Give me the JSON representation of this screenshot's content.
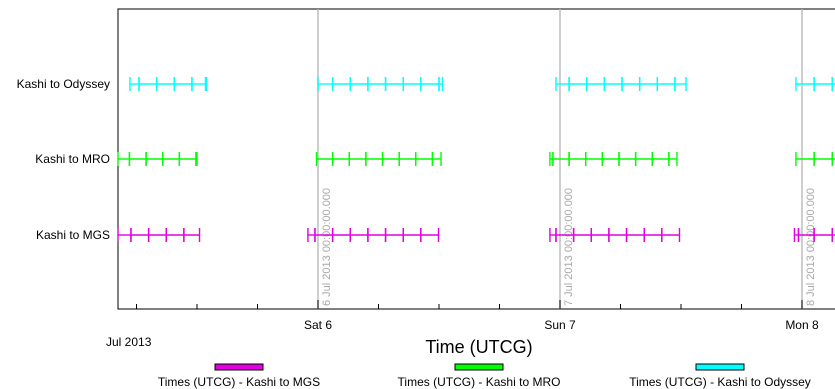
{
  "chart_data": {
    "type": "timeline",
    "title": "",
    "xlabel": "Time (UTCG)",
    "ylabel": "",
    "x_start_label": "Jul 2013",
    "x_ticks": [
      {
        "label": "Sat 6",
        "hour": 24
      },
      {
        "label": "Sun 7",
        "hour": 48
      },
      {
        "label": "Mon 8",
        "hour": 72
      }
    ],
    "vline_labels": [
      {
        "hour": 24,
        "text": "6 Jul 2013 00:00:00.000"
      },
      {
        "hour": 48,
        "text": "7 Jul 2013 00:00:00.000"
      },
      {
        "hour": 72,
        "text": "8 Jul 2013 00:00:00.000"
      }
    ],
    "xlim_hours": [
      4.1,
      75.8
    ],
    "series": [
      {
        "name": "Times (UTCG) - Kashi to Odyssey",
        "row_label": "Kashi to Odyssey",
        "color": "#00ffff",
        "intervals": [
          [
            5.35,
            6.25
          ],
          [
            6.25,
            8.0
          ],
          [
            8.0,
            9.75
          ],
          [
            9.75,
            11.5
          ],
          [
            11.5,
            12.85
          ],
          [
            12.85,
            12.95
          ],
          [
            24.0,
            25.45
          ],
          [
            25.45,
            27.2
          ],
          [
            27.2,
            28.95
          ],
          [
            28.95,
            30.7
          ],
          [
            30.7,
            32.45
          ],
          [
            32.45,
            34.2
          ],
          [
            34.2,
            36.0
          ],
          [
            36.0,
            36.35
          ],
          [
            47.6,
            48.9
          ],
          [
            48.9,
            50.65
          ],
          [
            50.65,
            52.4
          ],
          [
            52.4,
            54.15
          ],
          [
            54.15,
            55.9
          ],
          [
            55.9,
            57.65
          ],
          [
            57.65,
            59.4
          ],
          [
            59.4,
            60.5
          ],
          [
            71.4,
            73.2
          ],
          [
            73.2,
            75.0
          ],
          [
            75.0,
            75.8
          ]
        ]
      },
      {
        "name": "Times (UTCG) - Kashi to MRO",
        "row_label": "Kashi to MRO",
        "color": "#00ff00",
        "intervals": [
          [
            4.1,
            5.3
          ],
          [
            5.3,
            6.95
          ],
          [
            6.95,
            8.6
          ],
          [
            8.6,
            10.25
          ],
          [
            10.25,
            11.9
          ],
          [
            11.9,
            12.0
          ],
          [
            23.85,
            25.45
          ],
          [
            25.45,
            27.1
          ],
          [
            27.1,
            28.75
          ],
          [
            28.75,
            30.4
          ],
          [
            30.4,
            32.05
          ],
          [
            32.05,
            33.7
          ],
          [
            33.7,
            35.35
          ],
          [
            35.35,
            36.2
          ],
          [
            47.0,
            47.3
          ],
          [
            47.3,
            48.9
          ],
          [
            48.9,
            50.55
          ],
          [
            50.55,
            52.2
          ],
          [
            52.2,
            53.85
          ],
          [
            53.85,
            55.5
          ],
          [
            55.5,
            57.15
          ],
          [
            57.15,
            58.8
          ],
          [
            58.8,
            59.6
          ],
          [
            71.4,
            73.2
          ],
          [
            73.2,
            75.0
          ],
          [
            75.0,
            75.8
          ]
        ]
      },
      {
        "name": "Times (UTCG) - Kashi to MGS",
        "row_label": "Kashi to MGS",
        "color": "#e000e0",
        "intervals": [
          [
            4.1,
            5.45
          ],
          [
            5.45,
            7.2
          ],
          [
            7.2,
            8.95
          ],
          [
            8.95,
            10.7
          ],
          [
            10.7,
            12.25
          ],
          [
            23.0,
            23.7
          ],
          [
            23.7,
            25.45
          ],
          [
            25.45,
            27.2
          ],
          [
            27.2,
            28.95
          ],
          [
            28.95,
            30.7
          ],
          [
            30.7,
            32.45
          ],
          [
            32.45,
            34.2
          ],
          [
            34.2,
            35.95
          ],
          [
            47.0,
            47.6
          ],
          [
            47.6,
            49.35
          ],
          [
            49.35,
            51.1
          ],
          [
            51.1,
            52.85
          ],
          [
            52.85,
            54.6
          ],
          [
            54.6,
            56.35
          ],
          [
            56.35,
            58.1
          ],
          [
            58.1,
            59.85
          ],
          [
            71.25,
            71.65
          ],
          [
            71.65,
            73.2
          ],
          [
            73.2,
            75.0
          ],
          [
            75.0,
            75.8
          ]
        ]
      }
    ]
  }
}
